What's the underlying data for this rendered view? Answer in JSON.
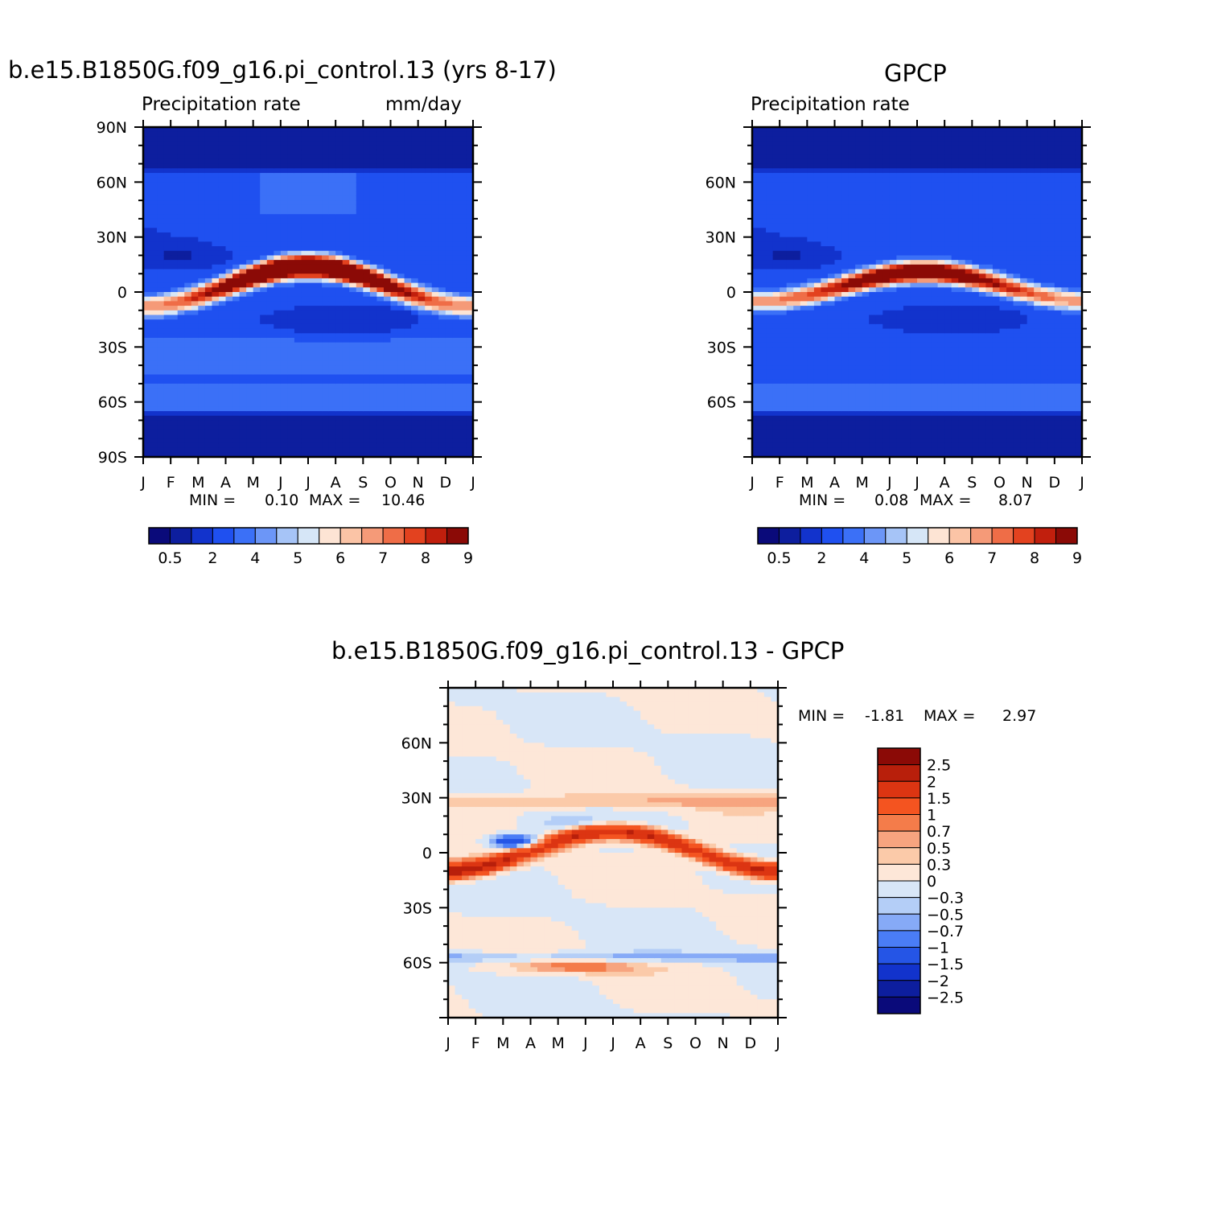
{
  "chart_data": [
    {
      "type": "heatmap",
      "title": "b.e15.B1850G.f09_g16.pi_control.13 (yrs 8-17)",
      "left_subtitle": "Precipitation rate",
      "right_subtitle": "mm/day",
      "x_ticklabels": [
        "J",
        "F",
        "M",
        "A",
        "M",
        "J",
        "J",
        "A",
        "S",
        "O",
        "N",
        "D",
        "J"
      ],
      "y_ticklabels": [
        "90N",
        "60N",
        "30N",
        "0",
        "30S",
        "60S",
        "90S"
      ],
      "ylim": [
        -90,
        90
      ],
      "min_label": "MIN =",
      "min_value": "0.10",
      "max_label": "MAX =",
      "max_value": "10.46",
      "colorbar_labels": [
        "0.5",
        "2",
        "4",
        "5",
        "6",
        "7",
        "8",
        "9"
      ]
    },
    {
      "type": "heatmap",
      "title": "GPCP",
      "left_subtitle": "Precipitation rate",
      "x_ticklabels": [
        "J",
        "F",
        "M",
        "A",
        "M",
        "J",
        "J",
        "A",
        "S",
        "O",
        "N",
        "D",
        "J"
      ],
      "y_ticklabels": [
        "60N",
        "30N",
        "0",
        "30S",
        "60S"
      ],
      "ylim": [
        -90,
        90
      ],
      "min_label": "MIN =",
      "min_value": "0.08",
      "max_label": "MAX =",
      "max_value": "8.07",
      "colorbar_labels": [
        "0.5",
        "2",
        "4",
        "5",
        "6",
        "7",
        "8",
        "9"
      ]
    },
    {
      "type": "heatmap",
      "title": "b.e15.B1850G.f09_g16.pi_control.13 - GPCP",
      "x_ticklabels": [
        "J",
        "F",
        "M",
        "A",
        "M",
        "J",
        "J",
        "A",
        "S",
        "O",
        "N",
        "D",
        "J"
      ],
      "y_ticklabels": [
        "60N",
        "30N",
        "0",
        "30S",
        "60S"
      ],
      "ylim": [
        -90,
        90
      ],
      "min_label": "MIN =",
      "min_value": "-1.81",
      "max_label": "MAX =",
      "max_value": "2.97",
      "colorbar_labels": [
        "2.5",
        "2",
        "1.5",
        "1",
        "0.7",
        "0.5",
        "0.3",
        "0",
        "-0.3",
        "-0.5",
        "-0.7",
        "-1",
        "-1.5",
        "-2",
        "-2.5"
      ]
    }
  ],
  "palettes": {
    "precip": [
      "#0a0a7a",
      "#0d1e9e",
      "#1233cc",
      "#1f50f0",
      "#3b70f7",
      "#6c96f7",
      "#a6c4f7",
      "#d6e6f7",
      "#fde4d4",
      "#fbc4a6",
      "#f59a78",
      "#ef6d47",
      "#e3421f",
      "#c11f0d",
      "#8b0a06"
    ],
    "diff": [
      "#8b0a06",
      "#b81f0b",
      "#dc3512",
      "#f45420",
      "#f47c4a",
      "#f7a47f",
      "#fbcaa9",
      "#fde7d8",
      "#d8e6f7",
      "#b4cef7",
      "#86aaf7",
      "#4a7df6",
      "#2555e6",
      "#1233cc",
      "#0d1e9e",
      "#0a0a7a"
    ]
  }
}
